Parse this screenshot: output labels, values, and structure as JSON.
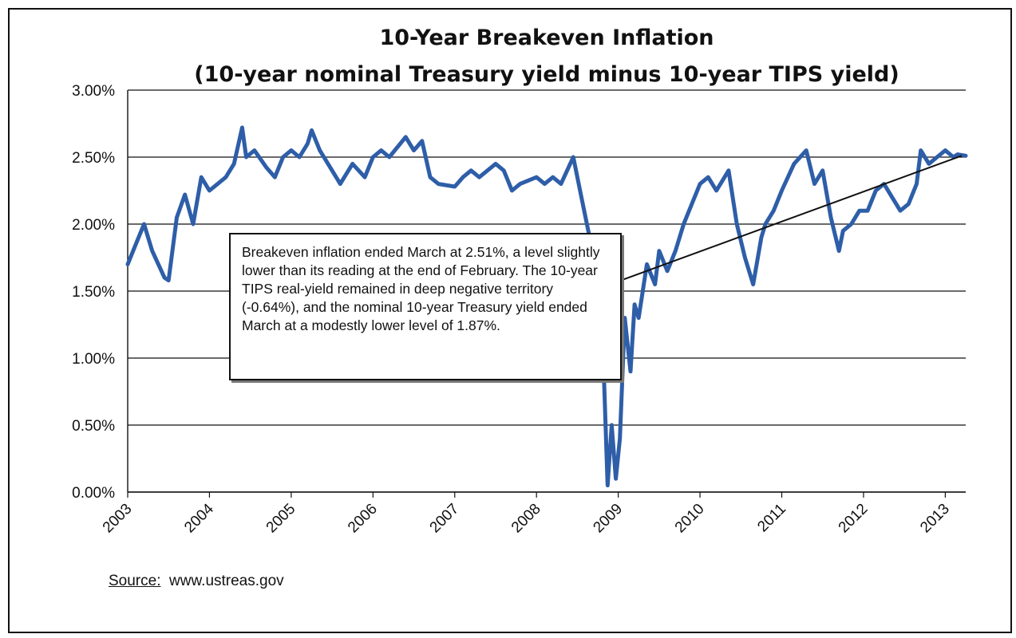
{
  "chart_data": {
    "type": "line",
    "title": "10-Year Breakeven Inflation",
    "subtitle": "(10-year nominal Treasury yield minus 10-year TIPS yield)",
    "xlabel": "",
    "ylabel": "",
    "ylim": [
      0,
      3.0
    ],
    "xlim": [
      2003.0,
      2013.25
    ],
    "y_ticks": [
      "0.00%",
      "0.50%",
      "1.00%",
      "1.50%",
      "2.00%",
      "2.50%",
      "3.00%"
    ],
    "x_ticks": [
      "2003",
      "2004",
      "2005",
      "2006",
      "2007",
      "2008",
      "2009",
      "2010",
      "2011",
      "2012",
      "2013"
    ],
    "grid": "horizontal",
    "legend": "none",
    "series": [
      {
        "color": "#2e5ea8",
        "x": [
          2003.0,
          2003.1,
          2003.2,
          2003.3,
          2003.45,
          2003.5,
          2003.6,
          2003.7,
          2003.8,
          2003.9,
          2004.0,
          2004.1,
          2004.2,
          2004.3,
          2004.4,
          2004.45,
          2004.55,
          2004.7,
          2004.8,
          2004.9,
          2005.0,
          2005.1,
          2005.2,
          2005.25,
          2005.35,
          2005.5,
          2005.6,
          2005.75,
          2005.9,
          2006.0,
          2006.1,
          2006.2,
          2006.4,
          2006.5,
          2006.6,
          2006.7,
          2006.8,
          2007.0,
          2007.1,
          2007.2,
          2007.3,
          2007.5,
          2007.6,
          2007.7,
          2007.8,
          2008.0,
          2008.1,
          2008.2,
          2008.3,
          2008.45,
          2008.55,
          2008.65,
          2008.75,
          2008.82,
          2008.87,
          2008.92,
          2008.97,
          2009.02,
          2009.08,
          2009.15,
          2009.2,
          2009.25,
          2009.35,
          2009.45,
          2009.5,
          2009.6,
          2009.7,
          2009.8,
          2009.9,
          2010.0,
          2010.1,
          2010.2,
          2010.35,
          2010.45,
          2010.55,
          2010.65,
          2010.75,
          2010.8,
          2010.9,
          2011.0,
          2011.15,
          2011.3,
          2011.4,
          2011.5,
          2011.6,
          2011.7,
          2011.75,
          2011.85,
          2011.95,
          2012.05,
          2012.15,
          2012.25,
          2012.35,
          2012.45,
          2012.55,
          2012.65,
          2012.7,
          2012.8,
          2012.9,
          2013.0,
          2013.1,
          2013.15,
          2013.25
        ],
        "y": [
          1.7,
          1.85,
          2.0,
          1.8,
          1.6,
          1.58,
          2.05,
          2.22,
          2.0,
          2.35,
          2.25,
          2.3,
          2.35,
          2.45,
          2.72,
          2.5,
          2.55,
          2.42,
          2.35,
          2.5,
          2.55,
          2.5,
          2.6,
          2.7,
          2.55,
          2.4,
          2.3,
          2.45,
          2.35,
          2.5,
          2.55,
          2.5,
          2.65,
          2.55,
          2.62,
          2.35,
          2.3,
          2.28,
          2.35,
          2.4,
          2.35,
          2.45,
          2.4,
          2.25,
          2.3,
          2.35,
          2.3,
          2.35,
          2.3,
          2.5,
          2.2,
          1.9,
          1.5,
          0.95,
          0.05,
          0.5,
          0.1,
          0.4,
          1.3,
          0.9,
          1.4,
          1.3,
          1.7,
          1.55,
          1.8,
          1.65,
          1.8,
          2.0,
          2.15,
          2.3,
          2.35,
          2.25,
          2.4,
          2.0,
          1.75,
          1.55,
          1.9,
          2.0,
          2.1,
          2.25,
          2.45,
          2.55,
          2.3,
          2.4,
          2.05,
          1.8,
          1.95,
          2.0,
          2.1,
          2.1,
          2.25,
          2.3,
          2.2,
          2.1,
          2.15,
          2.3,
          2.55,
          2.45,
          2.5,
          2.55,
          2.5,
          2.52,
          2.51
        ]
      }
    ],
    "trendline": {
      "x": [
        2008.9,
        2013.2
      ],
      "y": [
        1.55,
        2.51
      ]
    },
    "annotation": "Breakeven inflation ended March at 2.51%, a level slightly lower than its reading at the end of February.  The 10-year TIPS real-yield remained in deep negative territory (-0.64%), and the nominal 10-year Treasury yield ended March at a modestly lower level of 1.87%."
  },
  "source": {
    "label": "Source:",
    "text": "www.ustreas.gov"
  },
  "colors": {
    "series": "#2e5ea8",
    "trendline": "#111111",
    "grid": "#111111"
  }
}
